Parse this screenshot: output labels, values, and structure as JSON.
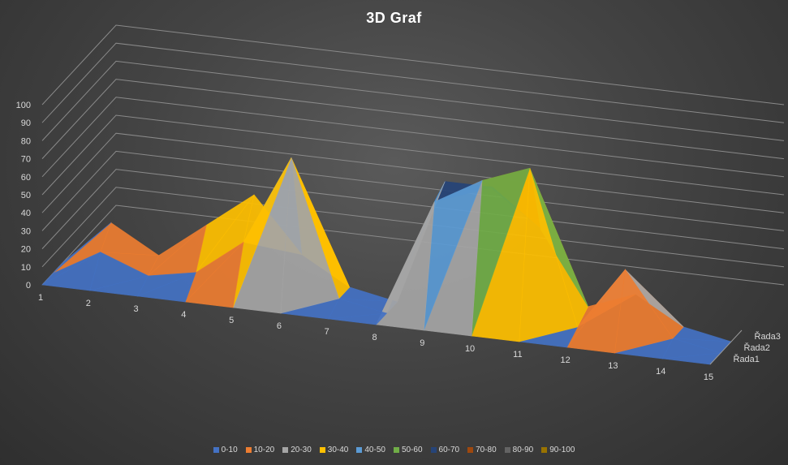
{
  "chart_data": {
    "type": "3d-surface",
    "title": "3D Graf",
    "x": [
      1,
      2,
      3,
      4,
      5,
      6,
      7,
      8,
      9,
      10,
      11,
      12,
      13,
      14,
      15
    ],
    "ylim": [
      0,
      100
    ],
    "yticks": [
      0,
      10,
      20,
      30,
      40,
      50,
      60,
      70,
      80,
      90,
      100
    ],
    "series": [
      {
        "name": "Řada1",
        "values": [
          0,
          0,
          0,
          0,
          0,
          0,
          0,
          0,
          0,
          0,
          0,
          0,
          0,
          0,
          0
        ]
      },
      {
        "name": "Řada2",
        "values": [
          0,
          15,
          5,
          10,
          30,
          80,
          5,
          0,
          65,
          80,
          90,
          5,
          40,
          5,
          0
        ]
      },
      {
        "name": "Řada3",
        "values": [
          0,
          25,
          10,
          30,
          50,
          20,
          5,
          0,
          70,
          70,
          50,
          10,
          20,
          5,
          0
        ]
      }
    ],
    "legend": {
      "position": "bottom",
      "entries": [
        {
          "label": "0-10",
          "color": "#4472C4"
        },
        {
          "label": "10-20",
          "color": "#ED7D31"
        },
        {
          "label": "20-30",
          "color": "#A5A5A5"
        },
        {
          "label": "30-40",
          "color": "#FFC000"
        },
        {
          "label": "40-50",
          "color": "#5B9BD5"
        },
        {
          "label": "50-60",
          "color": "#70AD47"
        },
        {
          "label": "60-70",
          "color": "#264478"
        },
        {
          "label": "70-80",
          "color": "#9E480E"
        },
        {
          "label": "80-90",
          "color": "#636363"
        },
        {
          "label": "90-100",
          "color": "#997300"
        }
      ]
    }
  }
}
